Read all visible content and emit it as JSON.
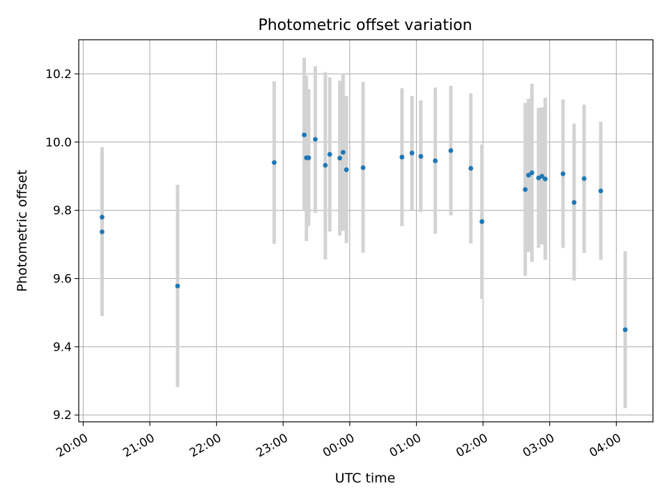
{
  "chart_data": {
    "type": "scatter",
    "title": "Photometric offset variation",
    "xlabel": "UTC time",
    "ylabel": "Photometric offset",
    "x_axis_type": "time",
    "xlim": [
      "19:56",
      "04:33"
    ],
    "ylim": [
      9.18,
      10.3
    ],
    "x_ticks": [
      "20:00",
      "21:00",
      "22:00",
      "23:00",
      "00:00",
      "01:00",
      "02:00",
      "03:00",
      "04:00"
    ],
    "y_ticks": [
      "9.2",
      "9.4",
      "9.6",
      "9.8",
      "10.0",
      "10.2"
    ],
    "grid": true,
    "point_color": "#1f77b4",
    "errorbar_color": "#d3d3d3",
    "points": [
      {
        "x": "20:17",
        "y": 9.78,
        "yerr_low": 9.58,
        "yerr_high": 9.985
      },
      {
        "x": "20:17",
        "y": 9.737,
        "yerr_low": 9.49,
        "yerr_high": 9.985
      },
      {
        "x": "21:25",
        "y": 9.578,
        "yerr_low": 9.282,
        "yerr_high": 9.875
      },
      {
        "x": "22:52",
        "y": 9.94,
        "yerr_low": 9.702,
        "yerr_high": 10.178
      },
      {
        "x": "23:19",
        "y": 10.021,
        "yerr_low": 9.8,
        "yerr_high": 10.247
      },
      {
        "x": "23:21",
        "y": 9.954,
        "yerr_low": 9.71,
        "yerr_high": 10.195
      },
      {
        "x": "23:23",
        "y": 9.954,
        "yerr_low": 9.754,
        "yerr_high": 10.155
      },
      {
        "x": "23:29",
        "y": 10.008,
        "yerr_low": 9.792,
        "yerr_high": 10.222
      },
      {
        "x": "23:38",
        "y": 9.932,
        "yerr_low": 9.656,
        "yerr_high": 10.205
      },
      {
        "x": "23:42",
        "y": 9.964,
        "yerr_low": 9.738,
        "yerr_high": 10.19
      },
      {
        "x": "23:51",
        "y": 9.953,
        "yerr_low": 9.726,
        "yerr_high": 10.18
      },
      {
        "x": "23:54",
        "y": 9.97,
        "yerr_low": 9.74,
        "yerr_high": 10.2
      },
      {
        "x": "23:57",
        "y": 9.919,
        "yerr_low": 9.704,
        "yerr_high": 10.135
      },
      {
        "x": "00:12",
        "y": 9.925,
        "yerr_low": 9.676,
        "yerr_high": 10.176
      },
      {
        "x": "00:47",
        "y": 9.956,
        "yerr_low": 9.753,
        "yerr_high": 10.158
      },
      {
        "x": "00:56",
        "y": 9.968,
        "yerr_low": 9.801,
        "yerr_high": 10.135
      },
      {
        "x": "01:04",
        "y": 9.958,
        "yerr_low": 9.795,
        "yerr_high": 10.122
      },
      {
        "x": "01:17",
        "y": 9.945,
        "yerr_low": 9.731,
        "yerr_high": 10.16
      },
      {
        "x": "01:31",
        "y": 9.975,
        "yerr_low": 9.785,
        "yerr_high": 10.165
      },
      {
        "x": "01:49",
        "y": 9.923,
        "yerr_low": 9.703,
        "yerr_high": 10.143
      },
      {
        "x": "01:59",
        "y": 9.767,
        "yerr_low": 9.54,
        "yerr_high": 9.993
      },
      {
        "x": "02:38",
        "y": 9.861,
        "yerr_low": 9.608,
        "yerr_high": 10.115
      },
      {
        "x": "02:41",
        "y": 9.903,
        "yerr_low": 9.678,
        "yerr_high": 10.127
      },
      {
        "x": "02:44",
        "y": 9.91,
        "yerr_low": 9.649,
        "yerr_high": 10.171
      },
      {
        "x": "02:50",
        "y": 9.895,
        "yerr_low": 9.69,
        "yerr_high": 10.1
      },
      {
        "x": "02:53",
        "y": 9.9,
        "yerr_low": 9.7,
        "yerr_high": 10.102
      },
      {
        "x": "02:56",
        "y": 9.892,
        "yerr_low": 9.655,
        "yerr_high": 10.13
      },
      {
        "x": "03:12",
        "y": 9.907,
        "yerr_low": 9.69,
        "yerr_high": 10.125
      },
      {
        "x": "03:22",
        "y": 9.823,
        "yerr_low": 9.594,
        "yerr_high": 10.054
      },
      {
        "x": "03:31",
        "y": 9.893,
        "yerr_low": 9.675,
        "yerr_high": 10.11
      },
      {
        "x": "03:46",
        "y": 9.857,
        "yerr_low": 9.655,
        "yerr_high": 10.06
      },
      {
        "x": "04:08",
        "y": 9.45,
        "yerr_low": 9.22,
        "yerr_high": 9.68
      }
    ]
  }
}
